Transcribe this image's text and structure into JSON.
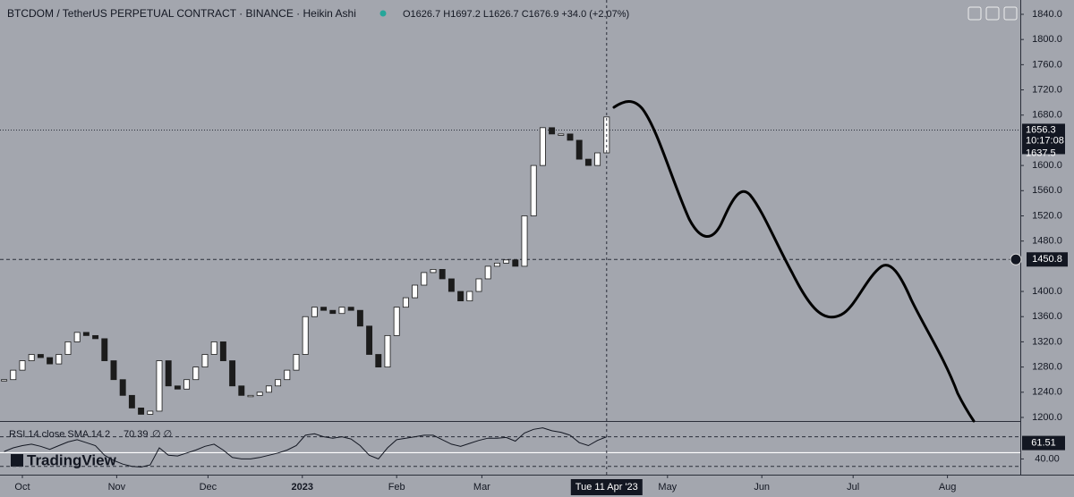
{
  "chart_data": {
    "type": "candlestick",
    "title": "BTCDOM / TetherUS PERPETUAL CONTRACT · BINANCE · Heikin Ashi",
    "ohlc_legend": "O1626.7 H1697.2 L1626.7 C1676.9 +34.0 (+2.07%)",
    "x": [
      -6,
      -3,
      0,
      3,
      6,
      9,
      12,
      15,
      18,
      21,
      24,
      27,
      30,
      33,
      36,
      39,
      42,
      45,
      48,
      51,
      54,
      57,
      60,
      63,
      66,
      69,
      72,
      75,
      78,
      81,
      84,
      87,
      90,
      93,
      96,
      99,
      102,
      105,
      108,
      111,
      114,
      117,
      120,
      123,
      126,
      129,
      132,
      135,
      138,
      141,
      144,
      147,
      150,
      153,
      156,
      159,
      162,
      165,
      168,
      171,
      174,
      177,
      180,
      183,
      186,
      189,
      192
    ],
    "values": [
      1260,
      1275,
      1290,
      1300,
      1295,
      1285,
      1300,
      1320,
      1335,
      1330,
      1325,
      1290,
      1260,
      1235,
      1215,
      1205,
      1210,
      1290,
      1250,
      1245,
      1260,
      1280,
      1300,
      1320,
      1290,
      1250,
      1235,
      1235,
      1240,
      1250,
      1260,
      1275,
      1300,
      1360,
      1375,
      1370,
      1365,
      1375,
      1370,
      1345,
      1300,
      1280,
      1330,
      1375,
      1390,
      1410,
      1430,
      1435,
      1420,
      1400,
      1385,
      1400,
      1420,
      1440,
      1445,
      1450,
      1440,
      1520,
      1600,
      1660,
      1650,
      1650,
      1640,
      1610,
      1600,
      1620,
      1677
    ],
    "up_color": "#ffffff",
    "down_color": "#1c1c1c",
    "xlim": [
      -7.35,
      327.94
    ],
    "xticks": [
      {
        "value": 0,
        "label": "Oct"
      },
      {
        "value": 31,
        "label": "Nov"
      },
      {
        "value": 61,
        "label": "Dec"
      },
      {
        "value": 92,
        "label": "2023"
      },
      {
        "value": 123,
        "label": "Feb"
      },
      {
        "value": 151,
        "label": "Mar"
      },
      {
        "value": 212,
        "label": "May"
      },
      {
        "value": 243,
        "label": "Jun"
      },
      {
        "value": 273,
        "label": "Jul"
      },
      {
        "value": 304,
        "label": "Aug"
      }
    ],
    "ylim": [
      1194.3,
      1862.7
    ],
    "yticks": [
      {
        "value": 1840,
        "label": "1840.0"
      },
      {
        "value": 1800,
        "label": "1800.0"
      },
      {
        "value": 1760,
        "label": "1760.0"
      },
      {
        "value": 1720,
        "label": "1720.0"
      },
      {
        "value": 1680,
        "label": "1680.0"
      },
      {
        "value": 1600,
        "label": "1600.0"
      },
      {
        "value": 1560,
        "label": "1560.0"
      },
      {
        "value": 1520,
        "label": "1520.0"
      },
      {
        "value": 1480,
        "label": "1480.0"
      },
      {
        "value": 1400,
        "label": "1400.0"
      },
      {
        "value": 1360,
        "label": "1360.0"
      },
      {
        "value": 1320,
        "label": "1320.0"
      },
      {
        "value": 1280,
        "label": "1280.0"
      },
      {
        "value": 1240,
        "label": "1240.0"
      },
      {
        "value": 1200,
        "label": "1200.0"
      }
    ],
    "last_price": {
      "value": 1656.3,
      "label": "1656.3"
    },
    "countdown": "10:17:08",
    "second_price": "1637.5",
    "horizontal_line": {
      "value": 1450.8,
      "label": "1450.8"
    },
    "crosshair": {
      "value": 192,
      "label": "Tue 11 Apr '23"
    },
    "rsi": {
      "title": "RSI 14 close SMA 14 2",
      "reading": "70.39",
      "extra": "∅ ∅",
      "values": [
        50,
        55,
        58,
        60,
        57,
        53,
        58,
        63,
        66,
        62,
        58,
        45,
        38,
        33,
        30,
        29,
        32,
        55,
        45,
        44,
        48,
        52,
        57,
        60,
        52,
        42,
        40,
        40,
        42,
        45,
        48,
        52,
        58,
        72,
        74,
        70,
        68,
        70,
        67,
        58,
        45,
        40,
        55,
        66,
        68,
        70,
        72,
        72,
        66,
        60,
        57,
        61,
        65,
        68,
        68,
        69,
        64,
        75,
        80,
        82,
        78,
        76,
        72,
        62,
        58,
        65,
        70
      ],
      "ylim": [
        20,
        90
      ],
      "yticks": [
        {
          "value": 40,
          "label": "40.00"
        }
      ],
      "levels": [
        70,
        30
      ],
      "current": 61.51
    },
    "brand": "TradingView"
  }
}
